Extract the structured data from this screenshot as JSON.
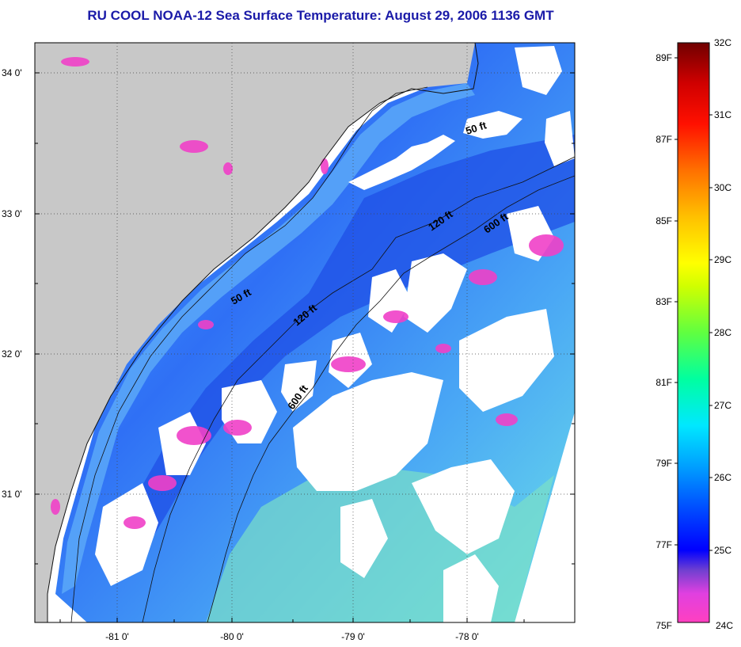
{
  "title": "RU COOL  NOAA-12  Sea Surface Temperature:  August 29, 2006 1136 GMT",
  "lat_labels": [
    "34 0'",
    "33 0'",
    "32 0'",
    "31 0'"
  ],
  "lon_labels": [
    "-81 0'",
    "-80 0'",
    "-79 0'",
    "-78 0'"
  ],
  "contours": [
    "50 ft",
    "120 ft",
    "600 ft",
    "50 ft",
    "120 ft",
    "600 ft"
  ],
  "colorbar": {
    "fahrenheit": [
      "89F",
      "87F",
      "85F",
      "83F",
      "81F",
      "79F",
      "77F",
      "75F"
    ],
    "celsius": [
      "32C",
      "31C",
      "30C",
      "29C",
      "28C",
      "27C",
      "26C",
      "25C",
      "24C"
    ]
  },
  "colors": {
    "land": "#c8c8c8",
    "cloud": "#ffffff",
    "title": "#1a1aa8",
    "water_blue": "#2a5cf0",
    "water_light": "#5aa8f8",
    "water_cyan": "#6ad8f0",
    "cold_magenta": "#f040c8"
  }
}
